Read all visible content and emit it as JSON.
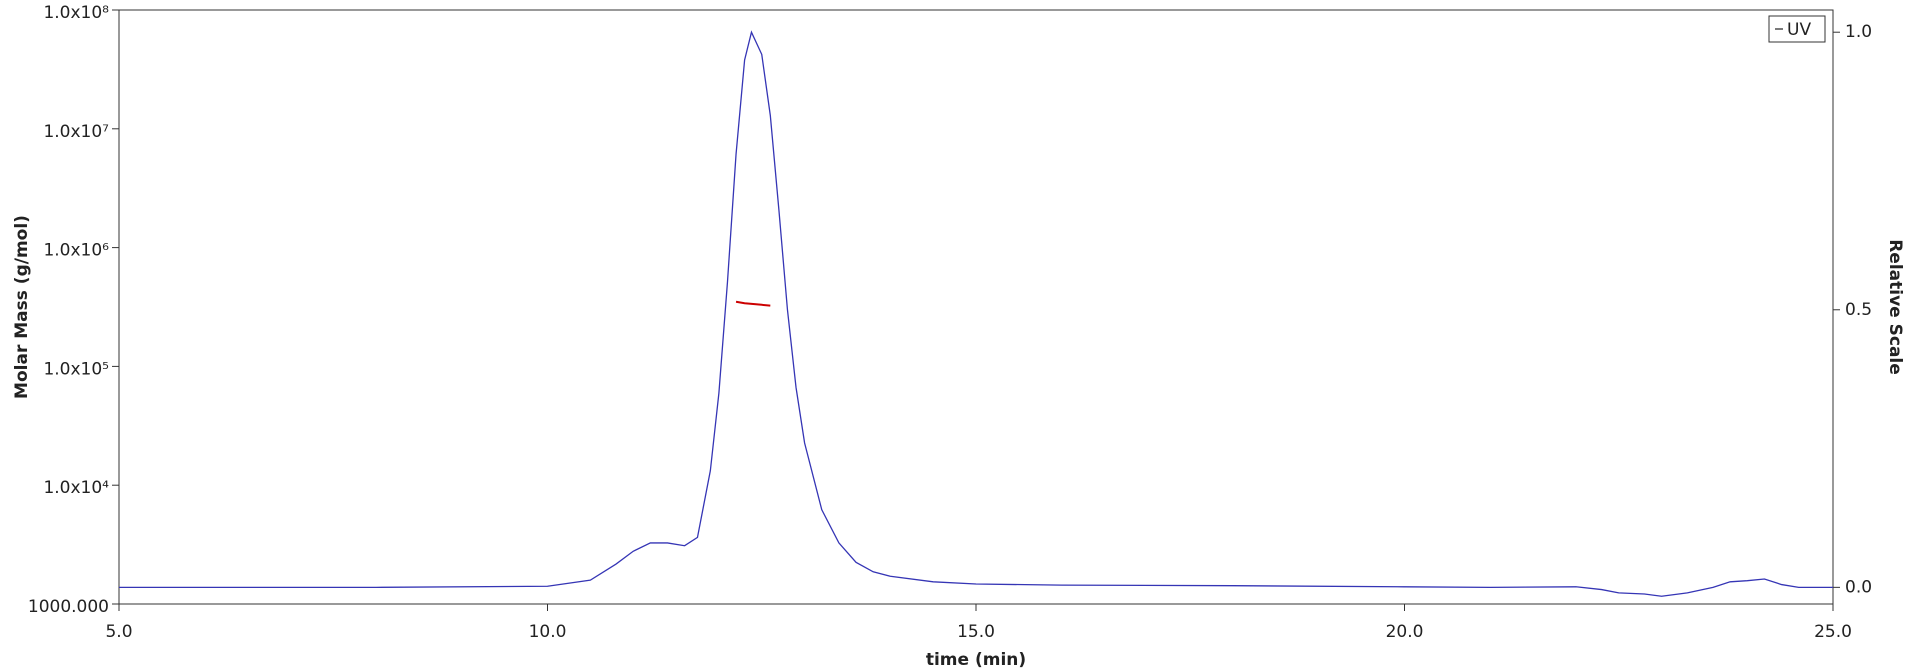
{
  "chart_data": {
    "type": "line",
    "xlabel": "time (min)",
    "ylabel": "Molar Mass (g/mol)",
    "y2label": "Relative Scale",
    "xlim": [
      5,
      25
    ],
    "xticks": [
      {
        "value": 5,
        "label": "5.0"
      },
      {
        "value": 10,
        "label": "10.0"
      },
      {
        "value": 15,
        "label": "15.0"
      },
      {
        "value": 20,
        "label": "20.0"
      },
      {
        "value": 25,
        "label": "25.0"
      }
    ],
    "ylim": [
      1000,
      100000000
    ],
    "ylog": true,
    "yticks": [
      {
        "value": 1000,
        "label": "1000.000"
      },
      {
        "value": 10000,
        "label": "1.0x10⁴"
      },
      {
        "value": 100000,
        "label": "1.0x10⁵"
      },
      {
        "value": 1000000,
        "label": "1.0x10⁶"
      },
      {
        "value": 10000000,
        "label": "1.0x10⁷"
      },
      {
        "value": 100000000,
        "label": "1.0x10⁸"
      }
    ],
    "y2lim": [
      -0.03,
      1.04
    ],
    "y2ticks": [
      {
        "value": 0,
        "label": "0.0"
      },
      {
        "value": 0.5,
        "label": "0.5"
      },
      {
        "value": 1,
        "label": "1.0"
      }
    ],
    "legend": "upper right",
    "series": [
      {
        "name": "UV",
        "color": "#3535b5",
        "axis": "y2",
        "x": [
          5,
          6,
          8,
          10,
          10.5,
          10.8,
          11.0,
          11.2,
          11.4,
          11.6,
          11.75,
          11.9,
          12.0,
          12.1,
          12.2,
          12.3,
          12.38,
          12.5,
          12.6,
          12.7,
          12.8,
          12.9,
          13.0,
          13.2,
          13.4,
          13.6,
          13.8,
          14.0,
          14.5,
          15,
          16,
          18,
          20,
          21,
          22,
          22.3,
          22.5,
          22.8,
          23.0,
          23.3,
          23.6,
          23.8,
          24.0,
          24.2,
          24.4,
          24.6,
          25
        ],
        "values": [
          0.0,
          0.0,
          0.0,
          0.002,
          0.013,
          0.042,
          0.065,
          0.08,
          0.08,
          0.075,
          0.09,
          0.21,
          0.35,
          0.55,
          0.78,
          0.95,
          1.0,
          0.96,
          0.85,
          0.68,
          0.5,
          0.36,
          0.26,
          0.14,
          0.08,
          0.045,
          0.028,
          0.02,
          0.01,
          0.006,
          0.004,
          0.003,
          0.001,
          0.0,
          0.001,
          -0.004,
          -0.01,
          -0.012,
          -0.016,
          -0.01,
          0.0,
          0.01,
          0.012,
          0.015,
          0.005,
          0.0,
          0.0
        ]
      },
      {
        "color": "#cc0000",
        "axis": "y",
        "x": [
          12.2,
          12.3,
          12.4,
          12.5,
          12.6
        ],
        "values": [
          350000,
          340000,
          335000,
          330000,
          325000
        ]
      }
    ]
  }
}
